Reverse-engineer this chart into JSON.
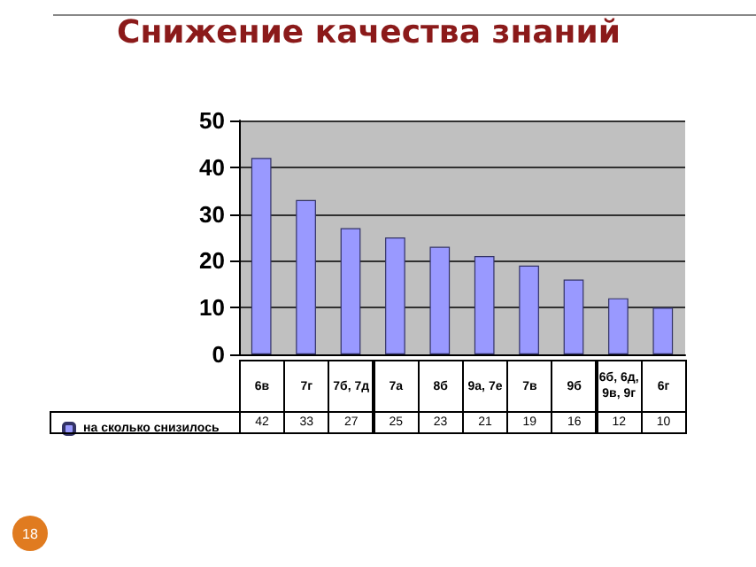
{
  "chart_data": {
    "type": "bar",
    "title": "Снижение качества знаний",
    "categories": [
      "6в",
      "7г",
      "7б, 7д",
      "7а",
      "8б",
      "9а, 7е",
      "7в",
      "9б",
      "6б, 6д, 9в, 9г",
      "6г"
    ],
    "series": [
      {
        "name": "на сколько снизилось",
        "color": "#9999ff",
        "values": [
          42,
          33,
          27,
          25,
          23,
          21,
          19,
          16,
          12,
          10
        ]
      }
    ],
    "ylim": [
      0,
      50
    ],
    "yticks": [
      0,
      10,
      20,
      30,
      40,
      50
    ],
    "grid": "y",
    "legend": "bottom left",
    "data_labels": true,
    "annotations": [
      "18"
    ]
  }
}
